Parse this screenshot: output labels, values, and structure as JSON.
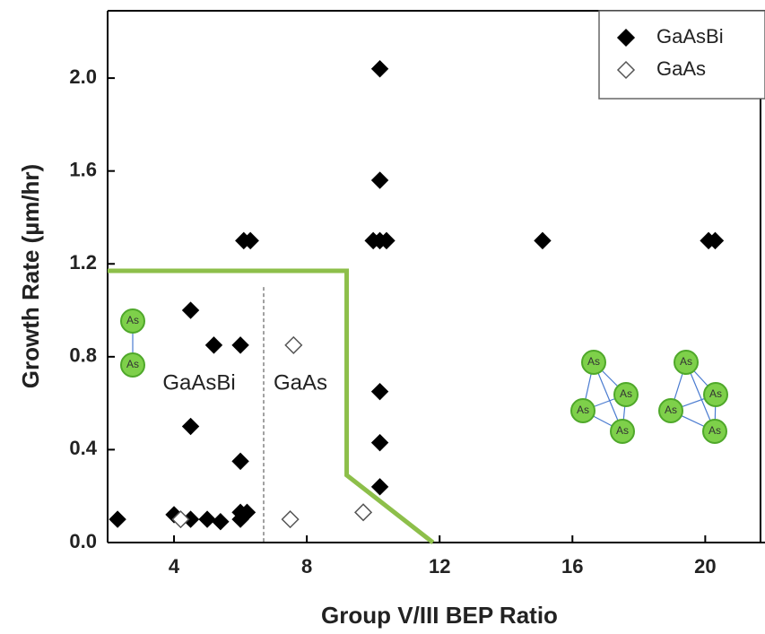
{
  "chart_data": {
    "type": "scatter",
    "xlabel": "Group V/III BEP Ratio",
    "ylabel": "Growth Rate (µm/hr)",
    "xlim": [
      2.0,
      21.8
    ],
    "ylim": [
      0,
      2.29
    ],
    "xticks": [
      4,
      8,
      12,
      16,
      20
    ],
    "yticks": [
      {
        "value": 0,
        "label": "0.0"
      },
      0.4,
      0.8,
      1.2,
      1.6,
      {
        "value": 2,
        "label": "2.0"
      }
    ],
    "legend": "upper right",
    "series": [
      {
        "name": "GaAsBi",
        "color": "#000000",
        "filled": true,
        "x": [
          2.3,
          4.0,
          4.5,
          4.5,
          4.5,
          5.2,
          5.0,
          5.4,
          6.0,
          6.0,
          6.0,
          6.0,
          6.2,
          6.1,
          6.3,
          10.2,
          10.2,
          10.0,
          10.2,
          10.4,
          10.2,
          10.2,
          10.2,
          15.1,
          20.1,
          20.3
        ],
        "values": [
          0.1,
          0.12,
          1.0,
          0.5,
          0.1,
          0.85,
          0.1,
          0.09,
          0.85,
          0.35,
          0.13,
          0.1,
          0.13,
          1.3,
          1.3,
          2.04,
          1.56,
          1.3,
          1.3,
          1.3,
          0.65,
          0.43,
          0.24,
          1.3,
          1.3,
          1.3
        ]
      },
      {
        "name": "GaAs",
        "color": "#555555",
        "filled": false,
        "x": [
          4.2,
          7.6,
          7.5,
          9.7
        ],
        "values": [
          0.1,
          0.85,
          0.1,
          0.13
        ]
      }
    ],
    "boundary": {
      "color": "#8dbf4a",
      "x": [
        2.0,
        9.2,
        9.2,
        11.8
      ],
      "values": [
        1.17,
        1.17,
        0.29,
        0
      ]
    },
    "divider": {
      "x": 6.7,
      "values": [
        1.1,
        0
      ]
    },
    "region_labels": [
      "GaAsBi",
      "GaAs"
    ],
    "molecule_label": "As"
  }
}
